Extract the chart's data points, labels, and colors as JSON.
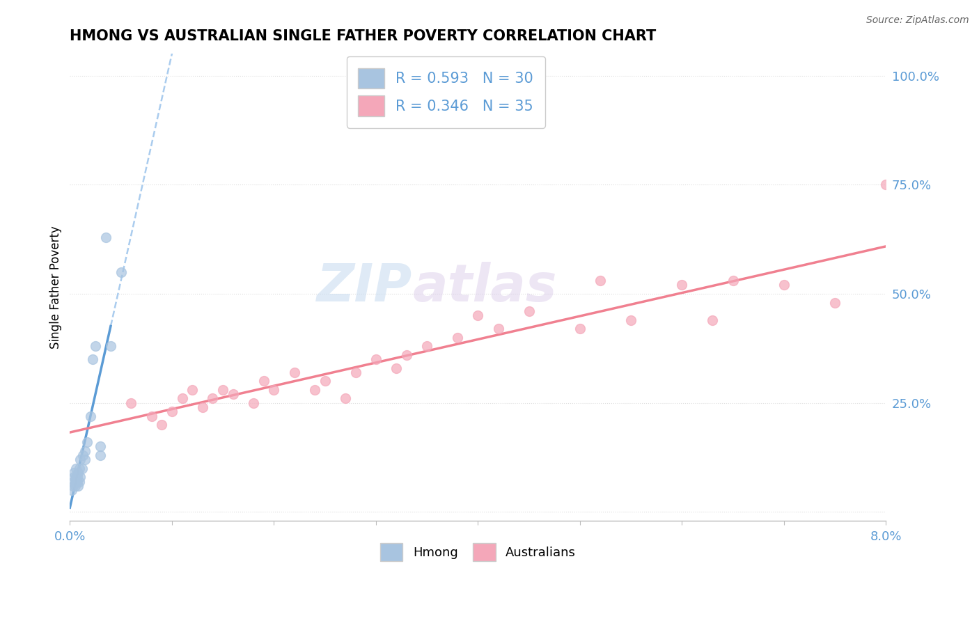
{
  "title": "HMONG VS AUSTRALIAN SINGLE FATHER POVERTY CORRELATION CHART",
  "source": "Source: ZipAtlas.com",
  "ylabel": "Single Father Poverty",
  "xlim": [
    0.0,
    0.08
  ],
  "ylim": [
    -0.02,
    1.05
  ],
  "R_hmong": 0.593,
  "N_hmong": 30,
  "R_aus": 0.346,
  "N_aus": 35,
  "hmong_color": "#a8c4e0",
  "aus_color": "#f4a7b9",
  "hmong_line_color": "#5b9bd5",
  "aus_line_color": "#f08090",
  "watermark_text": "ZIP",
  "watermark_text2": "atlas",
  "hmong_x": [
    0.0002,
    0.0003,
    0.0003,
    0.0004,
    0.0004,
    0.0005,
    0.0005,
    0.0006,
    0.0006,
    0.0007,
    0.0007,
    0.0008,
    0.0008,
    0.0009,
    0.0009,
    0.001,
    0.001,
    0.0012,
    0.0013,
    0.0015,
    0.0015,
    0.0017,
    0.002,
    0.0022,
    0.0025,
    0.003,
    0.003,
    0.0035,
    0.004,
    0.005
  ],
  "hmong_y": [
    0.05,
    0.06,
    0.07,
    0.08,
    0.09,
    0.06,
    0.07,
    0.08,
    0.1,
    0.07,
    0.08,
    0.06,
    0.09,
    0.07,
    0.1,
    0.08,
    0.12,
    0.1,
    0.13,
    0.12,
    0.14,
    0.16,
    0.22,
    0.35,
    0.38,
    0.13,
    0.15,
    0.63,
    0.38,
    0.55
  ],
  "aus_x": [
    0.006,
    0.008,
    0.009,
    0.01,
    0.011,
    0.012,
    0.013,
    0.014,
    0.015,
    0.016,
    0.018,
    0.019,
    0.02,
    0.022,
    0.024,
    0.025,
    0.027,
    0.028,
    0.03,
    0.032,
    0.033,
    0.035,
    0.038,
    0.04,
    0.042,
    0.045,
    0.05,
    0.052,
    0.055,
    0.06,
    0.063,
    0.065,
    0.07,
    0.075,
    0.08
  ],
  "aus_y": [
    0.25,
    0.22,
    0.2,
    0.23,
    0.26,
    0.28,
    0.24,
    0.26,
    0.28,
    0.27,
    0.25,
    0.3,
    0.28,
    0.32,
    0.28,
    0.3,
    0.26,
    0.32,
    0.35,
    0.33,
    0.36,
    0.38,
    0.4,
    0.45,
    0.42,
    0.46,
    0.42,
    0.53,
    0.44,
    0.52,
    0.44,
    0.53,
    0.52,
    0.48,
    0.75
  ],
  "hmong_line_start_x": 0.0,
  "hmong_line_end_x": 0.005,
  "hmong_line_dashed_start_x": 0.005,
  "hmong_line_dashed_end_x": 0.08,
  "aus_line_start_x": 0.0,
  "aus_line_end_x": 0.08,
  "yticks": [
    0.0,
    0.25,
    0.5,
    0.75,
    1.0
  ],
  "ytick_labels": [
    "",
    "25.0%",
    "50.0%",
    "75.0%",
    "100.0%"
  ],
  "title_fontsize": 15,
  "tick_fontsize": 13
}
